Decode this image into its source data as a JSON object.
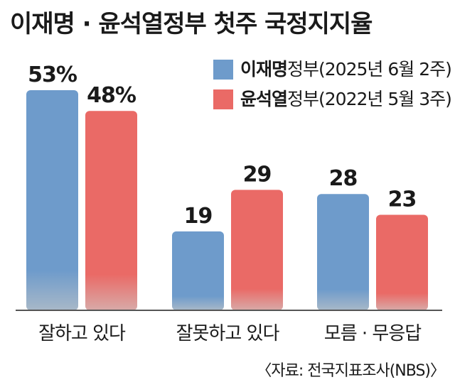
{
  "title": "이재명 · 윤석열정부 첫주 국정지지율",
  "source": "〈자료: 전국지표조사(NBS)〉",
  "legend": [
    {
      "name_bold": "이재명",
      "name_rest": "정부(2025년 6월 2주)",
      "color": "#6e9bcb"
    },
    {
      "name_bold": "윤석열",
      "name_rest": "정부(2022년 5월 3주)",
      "color": "#ea6a66"
    }
  ],
  "chart_data": {
    "type": "bar",
    "title": "이재명 · 윤석열정부 첫주 국정지지율",
    "categories": [
      "잘하고 있다",
      "잘못하고 있다",
      "모름 · 무응답"
    ],
    "series": [
      {
        "name": "이재명정부(2025년 6월 2주)",
        "values": [
          53,
          19,
          28
        ],
        "labels": [
          "53%",
          "19",
          "28"
        ],
        "color": "#6e9bcb"
      },
      {
        "name": "윤석열정부(2022년 5월 3주)",
        "values": [
          48,
          29,
          23
        ],
        "labels": [
          "48%",
          "29",
          "23"
        ],
        "color": "#ea6a66"
      }
    ],
    "unit": "%",
    "grid": false
  }
}
